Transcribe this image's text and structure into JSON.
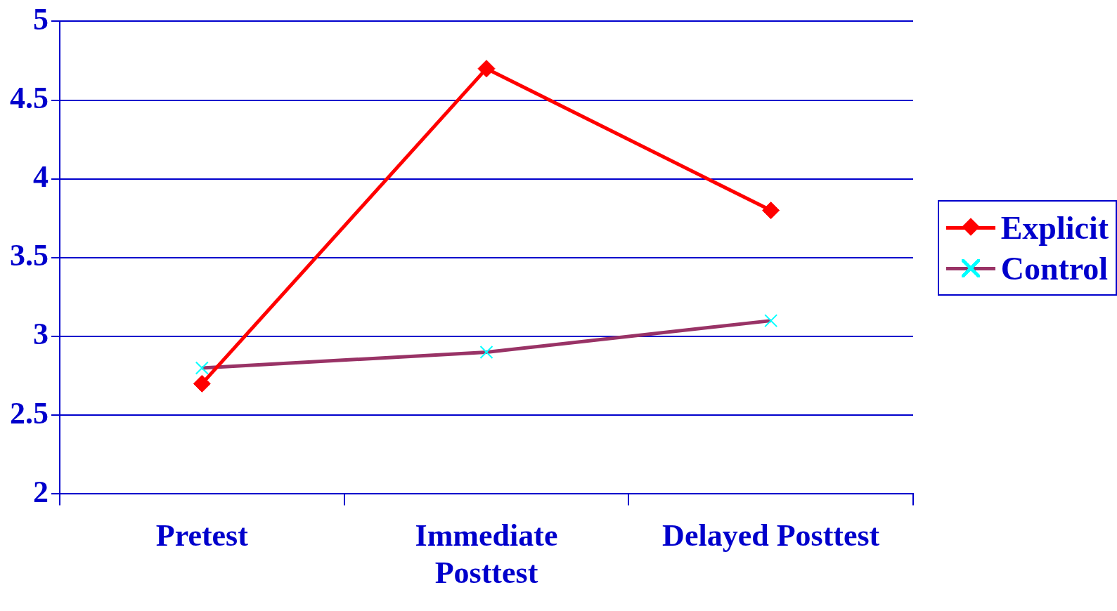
{
  "chart_data": {
    "type": "line",
    "categories": [
      "Pretest",
      "Immediate Posttest",
      "Delayed Posttest"
    ],
    "series": [
      {
        "name": "Explicit",
        "color": "#ff0000",
        "marker": "diamond",
        "values": [
          2.7,
          4.7,
          3.8
        ]
      },
      {
        "name": "Control",
        "color": "#993366",
        "marker": "cross",
        "colors": [
          "#00ffff",
          "#00ffff",
          "#00ffff"
        ],
        "values": [
          2.8,
          2.9,
          3.1
        ]
      }
    ],
    "ylim": [
      2,
      5
    ],
    "yticks": [
      2,
      2.5,
      3,
      3.5,
      4,
      4.5,
      5
    ],
    "grid": "y",
    "legend": "right",
    "line_style": "solid"
  }
}
